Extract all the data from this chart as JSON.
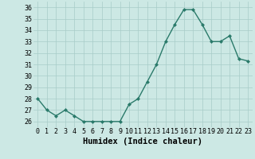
{
  "x": [
    0,
    1,
    2,
    3,
    4,
    5,
    6,
    7,
    8,
    9,
    10,
    11,
    12,
    13,
    14,
    15,
    16,
    17,
    18,
    19,
    20,
    21,
    22,
    23
  ],
  "y": [
    28,
    27,
    26.5,
    27,
    26.5,
    26,
    26,
    26,
    26,
    26,
    27.5,
    28,
    29.5,
    31,
    33,
    34.5,
    35.8,
    35.8,
    34.5,
    33,
    33,
    33.5,
    31.5,
    31.3
  ],
  "line_color": "#2a7a6a",
  "bg_plot": "#cce8e4",
  "bg_fig": "#cce8e4",
  "grid_color": "#a8ccc8",
  "xlabel": "Humidex (Indice chaleur)",
  "ylim": [
    25.5,
    36.5
  ],
  "xlim": [
    -0.5,
    23.5
  ],
  "yticks": [
    26,
    27,
    28,
    29,
    30,
    31,
    32,
    33,
    34,
    35,
    36
  ],
  "xticks": [
    0,
    1,
    2,
    3,
    4,
    5,
    6,
    7,
    8,
    9,
    10,
    11,
    12,
    13,
    14,
    15,
    16,
    17,
    18,
    19,
    20,
    21,
    22,
    23
  ],
  "marker": "D",
  "marker_size": 2.0,
  "line_width": 1.0,
  "xlabel_fontsize": 7.5,
  "tick_fontsize": 6.0
}
